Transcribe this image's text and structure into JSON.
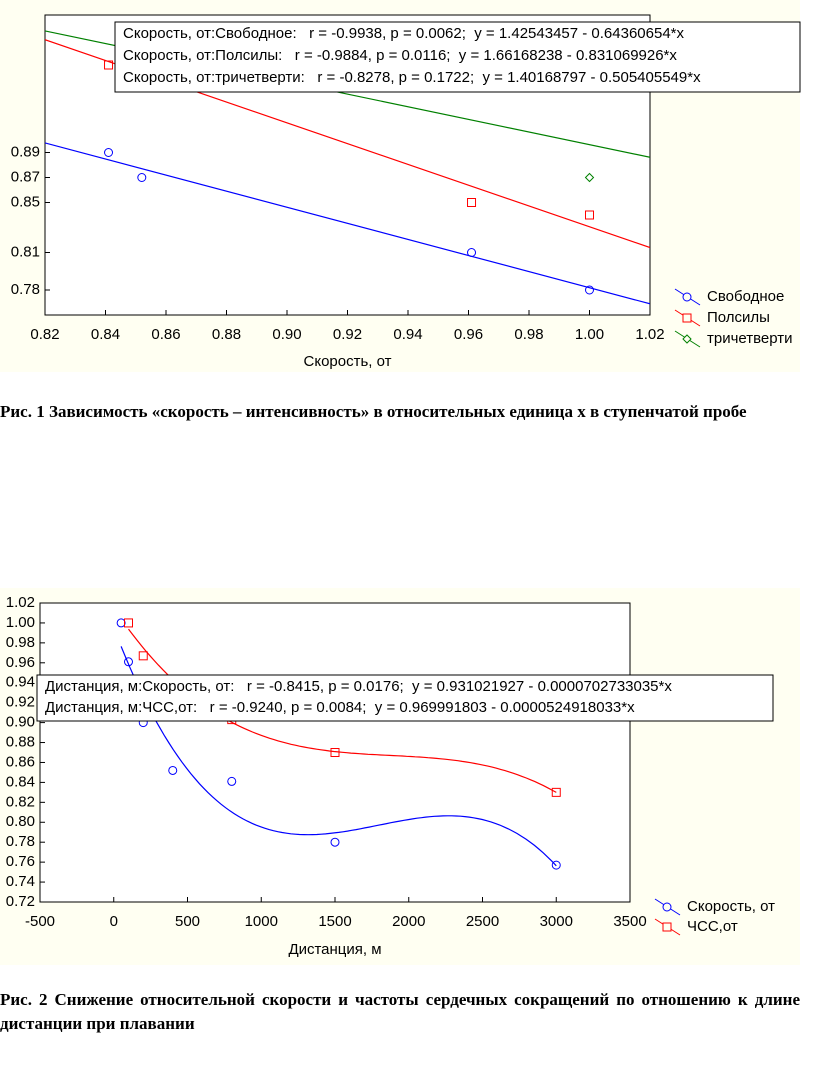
{
  "chart_data": [
    {
      "type": "scatter",
      "xlabel": "Скорость, от",
      "xlim": [
        0.82,
        1.02
      ],
      "xticks": [
        0.82,
        0.84,
        0.86,
        0.88,
        {
          "value": 0.9,
          "label": "0.90"
        },
        0.92,
        0.94,
        0.96,
        0.98,
        {
          "value": 1,
          "label": "1.00"
        },
        1.02
      ],
      "ylim": [
        0.76,
        1.0
      ],
      "yticks": [
        0.78,
        0.81,
        0.85,
        0.87,
        0.89
      ],
      "legend": "lower right",
      "series": [
        {
          "name": "Свободное",
          "color": "#0000ff",
          "marker": "circle",
          "x": [
            0.841,
            0.852,
            0.961,
            1.0
          ],
          "values": [
            0.89,
            0.87,
            0.81,
            0.78
          ],
          "fit": {
            "intercept": 1.42543457,
            "slope": -0.64360654
          }
        },
        {
          "name": "Полсилы",
          "color": "#ff0000",
          "marker": "square",
          "x": [
            0.841,
            0.961,
            1.0
          ],
          "values": [
            0.96,
            0.85,
            0.84
          ],
          "fit": {
            "intercept": 1.66168238,
            "slope": -0.831069926
          }
        },
        {
          "name": "тричетверти",
          "color": "#008000",
          "marker": "diamond",
          "x": [
            1.0
          ],
          "values": [
            0.87
          ],
          "fit": {
            "intercept": 1.40168797,
            "slope": -0.505405549
          }
        }
      ],
      "annotations": [
        "Скорость, от:Свободное:   r = -0.9938, p = 0.0062;  y = 1.42543457 - 0.64360654*x",
        "Скорость, от:Полсилы:   r = -0.9884, p = 0.0116;  y = 1.66168238 - 0.831069926*x",
        "Скорость, от:тричетверти:   r = -0.8278, p = 0.1722;  y = 1.40168797 - 0.505405549*x"
      ],
      "caption": "Рис. 1 Зависимость «скорость – интенсивность» в относительных единица х в ступенчатой пробе"
    },
    {
      "type": "scatter",
      "xlabel": "Дистанция, м",
      "xlim": [
        -500,
        3500
      ],
      "xticks": [
        -500,
        0,
        500,
        1000,
        1500,
        2000,
        2500,
        3000,
        3500
      ],
      "ylim": [
        0.72,
        1.02
      ],
      "yticks": [
        0.72,
        0.74,
        0.76,
        0.78,
        {
          "value": 0.8,
          "label": "0.80"
        },
        0.82,
        0.84,
        0.86,
        0.88,
        {
          "value": 0.9,
          "label": "0.90"
        },
        0.92,
        0.94,
        0.96,
        0.98,
        {
          "value": 1,
          "label": "1.00"
        },
        1.02
      ],
      "legend": "lower right",
      "smooth": true,
      "series": [
        {
          "name": "Скорость, от",
          "color": "#0000ff",
          "marker": "circle",
          "x": [
            50,
            100,
            200,
            400,
            800,
            1500,
            3000
          ],
          "values": [
            1.0,
            0.961,
            0.9,
            0.852,
            0.841,
            0.78,
            0.757
          ]
        },
        {
          "name": "ЧСС,от",
          "color": "#ff0000",
          "marker": "square",
          "x": [
            100,
            200,
            800,
            1500,
            3000
          ],
          "values": [
            1.0,
            0.967,
            0.903,
            0.87,
            0.83
          ]
        }
      ],
      "annotations": [
        "Дистанция, м:Скорость, от:   r = -0.8415, p = 0.0176;  y = 0.931021927 - 0.0000702733035*x",
        "Дистанция, м:ЧСС,от:   r = -0.9240, p = 0.0084;  y = 0.969991803 - 0.0000524918033*x"
      ],
      "caption": "Рис. 2 Снижение относительной скорости и частоты сердечных сокращений по отношению к длине дистанции при плавании"
    }
  ]
}
